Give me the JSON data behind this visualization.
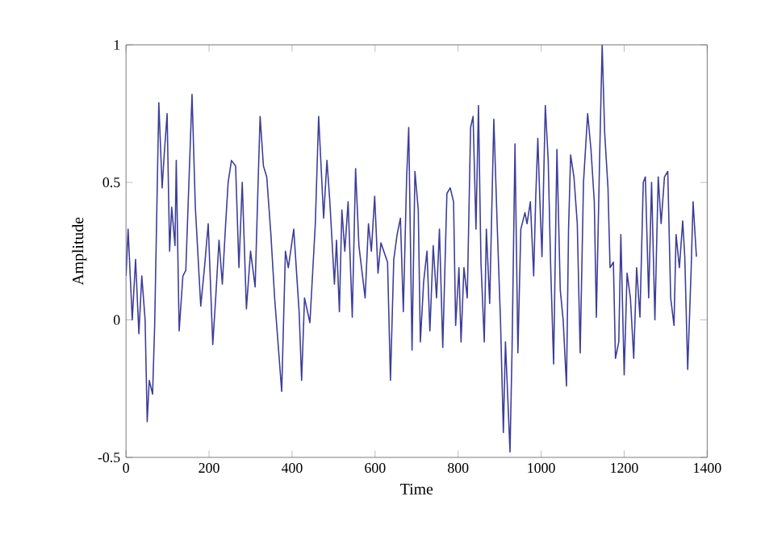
{
  "chart_data": {
    "type": "line",
    "xlabel": "Time",
    "ylabel": "Amplitude",
    "xlim": [
      0,
      1400
    ],
    "ylim": [
      -0.5,
      1
    ],
    "xticks": [
      0,
      200,
      400,
      600,
      800,
      1000,
      1200,
      1400
    ],
    "yticks": [
      -0.5,
      0,
      0.5,
      1
    ],
    "grid": false,
    "marker": "none",
    "line_style": "solid",
    "series": [
      {
        "color": "#3d3d99",
        "x": [
          0,
          5,
          15,
          23,
          31,
          38,
          46,
          51,
          56,
          64,
          69,
          79,
          87,
          92,
          99,
          105,
          110,
          118,
          121,
          128,
          137,
          144,
          159,
          167,
          180,
          189,
          198,
          209,
          216,
          224,
          232,
          240,
          246,
          254,
          264,
          272,
          280,
          290,
          300,
          311,
          318,
          323,
          331,
          339,
          349,
          358,
          375,
          384,
          391,
          404,
          417,
          423,
          430,
          443,
          456,
          464,
          476,
          484,
          491,
          502,
          507,
          514,
          520,
          527,
          535,
          545,
          553,
          561,
          576,
          584,
          591,
          599,
          607,
          614,
          630,
          637,
          645,
          653,
          661,
          668,
          676,
          681,
          689,
          696,
          704,
          709,
          717,
          725,
          732,
          740,
          748,
          755,
          763,
          773,
          781,
          789,
          794,
          802,
          807,
          814,
          822,
          830,
          836,
          843,
          849,
          855,
          863,
          868,
          876,
          886,
          894,
          902,
          909,
          914,
          925,
          930,
          937,
          944,
          951,
          961,
          966,
          974,
          982,
          987,
          992,
          997,
          1002,
          1010,
          1017,
          1023,
          1030,
          1038,
          1046,
          1053,
          1061,
          1066,
          1071,
          1079,
          1087,
          1094,
          1102,
          1112,
          1120,
          1128,
          1133,
          1141,
          1147,
          1153,
          1161,
          1166,
          1174,
          1179,
          1187,
          1192,
          1200,
          1207,
          1215,
          1223,
          1230,
          1238,
          1246,
          1251,
          1259,
          1266,
          1274,
          1282,
          1289,
          1297,
          1305,
          1312,
          1320,
          1325,
          1333,
          1341,
          1346,
          1353,
          1361,
          1366,
          1374
        ],
        "values": [
          0.16,
          0.33,
          0,
          0.22,
          -0.05,
          0.16,
          0,
          -0.37,
          -0.22,
          -0.27,
          -0.02,
          0.79,
          0.48,
          0.6,
          0.75,
          0.25,
          0.41,
          0.27,
          0.58,
          -0.04,
          0.16,
          0.18,
          0.82,
          0.41,
          0.05,
          0.19,
          0.35,
          -0.09,
          0.08,
          0.29,
          0.13,
          0.35,
          0.5,
          0.58,
          0.56,
          0.19,
          0.5,
          0.04,
          0.25,
          0.12,
          0.49,
          0.74,
          0.56,
          0.52,
          0.31,
          0.08,
          -0.26,
          0.25,
          0.19,
          0.33,
          0.03,
          -0.22,
          0.08,
          -0.01,
          0.35,
          0.74,
          0.37,
          0.58,
          0.43,
          0.13,
          0.29,
          0.03,
          0.4,
          0.25,
          0.43,
          0.01,
          0.55,
          0.27,
          0.08,
          0.35,
          0.25,
          0.45,
          0.17,
          0.28,
          0.21,
          -0.22,
          0.22,
          0.31,
          0.37,
          0.03,
          0.52,
          0.7,
          -0.11,
          0.54,
          0.4,
          -0.08,
          0.14,
          0.25,
          -0.04,
          0.27,
          0.08,
          0.33,
          -0.1,
          0.46,
          0.48,
          0.43,
          -0.02,
          0.19,
          -0.08,
          0.19,
          0.08,
          0.7,
          0.74,
          0.33,
          0.78,
          0.21,
          -0.08,
          0.33,
          0.06,
          0.73,
          0.35,
          0,
          -0.41,
          -0.08,
          -0.48,
          -0.1,
          0.64,
          -0.12,
          0.33,
          0.39,
          0.35,
          0.43,
          0.16,
          0.45,
          0.66,
          0.43,
          0.23,
          0.78,
          0.58,
          0.19,
          -0.16,
          0.62,
          0.11,
          0,
          -0.24,
          0.33,
          0.6,
          0.52,
          0.35,
          -0.12,
          0.5,
          0.75,
          0.62,
          0.43,
          0.01,
          0.6,
          1,
          0.68,
          0.48,
          0.19,
          0.21,
          -0.14,
          -0.08,
          0.31,
          -0.2,
          0.17,
          0.08,
          -0.14,
          0.19,
          0.01,
          0.5,
          0.52,
          0.08,
          0.5,
          0,
          0.52,
          0.35,
          0.52,
          0.54,
          0.08,
          -0.02,
          0.31,
          0.19,
          0.36,
          0.23,
          -0.18,
          0.17,
          0.43,
          0.23
        ]
      }
    ]
  }
}
